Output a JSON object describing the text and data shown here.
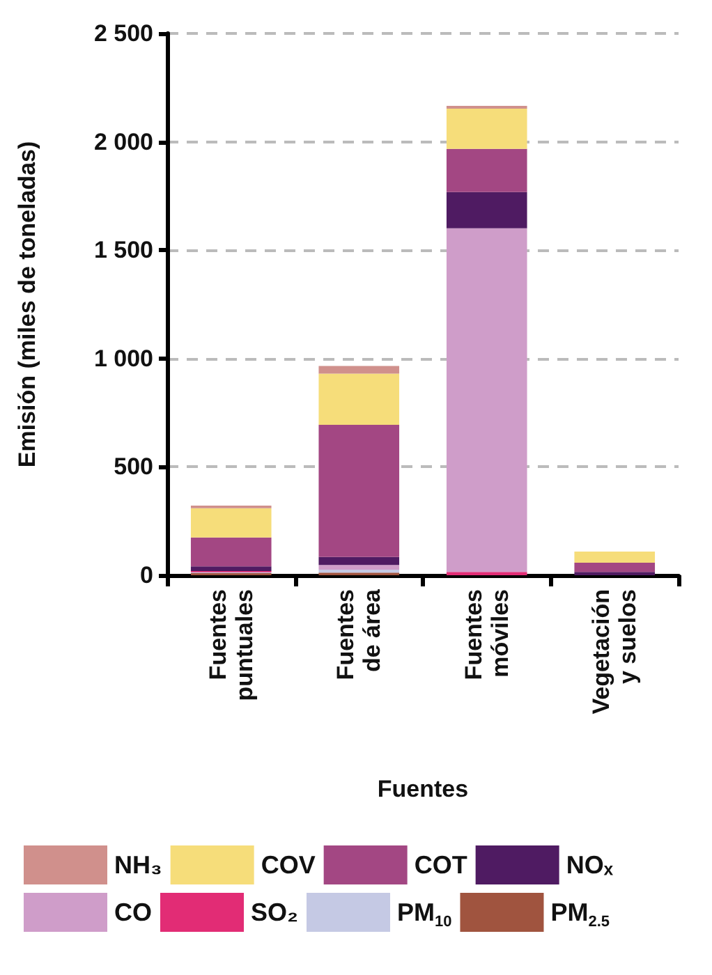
{
  "chart_data": {
    "type": "bar",
    "stacked": true,
    "xlabel": "Fuentes",
    "ylabel": "Emisión (miles de toneladas)",
    "categories": [
      "Fuentes\npuntuales",
      "Fuentes\nde área",
      "Fuentes\nmóviles",
      "Vegetación\ny suelos"
    ],
    "ylim": [
      0,
      2500
    ],
    "yticks": [
      0,
      500,
      {
        "value": 1000,
        "label": "1 000"
      },
      {
        "value": 1500,
        "label": "1 500"
      },
      {
        "value": 2000,
        "label": "2 000"
      },
      {
        "value": 2500,
        "label": "2 500"
      }
    ],
    "grid": "y",
    "legend": "bottom",
    "series": [
      {
        "name": "PM$_{2.5}$",
        "color": "#a0543f",
        "values": [
          10,
          12,
          0,
          0
        ]
      },
      {
        "name": "PM$_{10}$",
        "color": "#c5c9e4",
        "values": [
          4,
          14,
          0,
          0
        ]
      },
      {
        "name": "SO₂",
        "color": "#e22c75",
        "values": [
          5,
          0,
          15,
          0
        ]
      },
      {
        "name": "CO",
        "color": "#cf9dc9",
        "values": [
          0,
          21,
          1586,
          0
        ]
      },
      {
        "name": "NOₓ",
        "color": "#4f1b62",
        "values": [
          22,
          37,
          167,
          15
        ]
      },
      {
        "name": "COT",
        "color": "#a34783",
        "values": [
          133,
          610,
          199,
          43
        ]
      },
      {
        "name": "COV",
        "color": "#f6dd7a",
        "values": [
          135,
          236,
          186,
          51
        ]
      },
      {
        "name": "NH₃",
        "color": "#d0908c",
        "values": [
          12,
          36,
          13,
          0
        ]
      }
    ]
  }
}
